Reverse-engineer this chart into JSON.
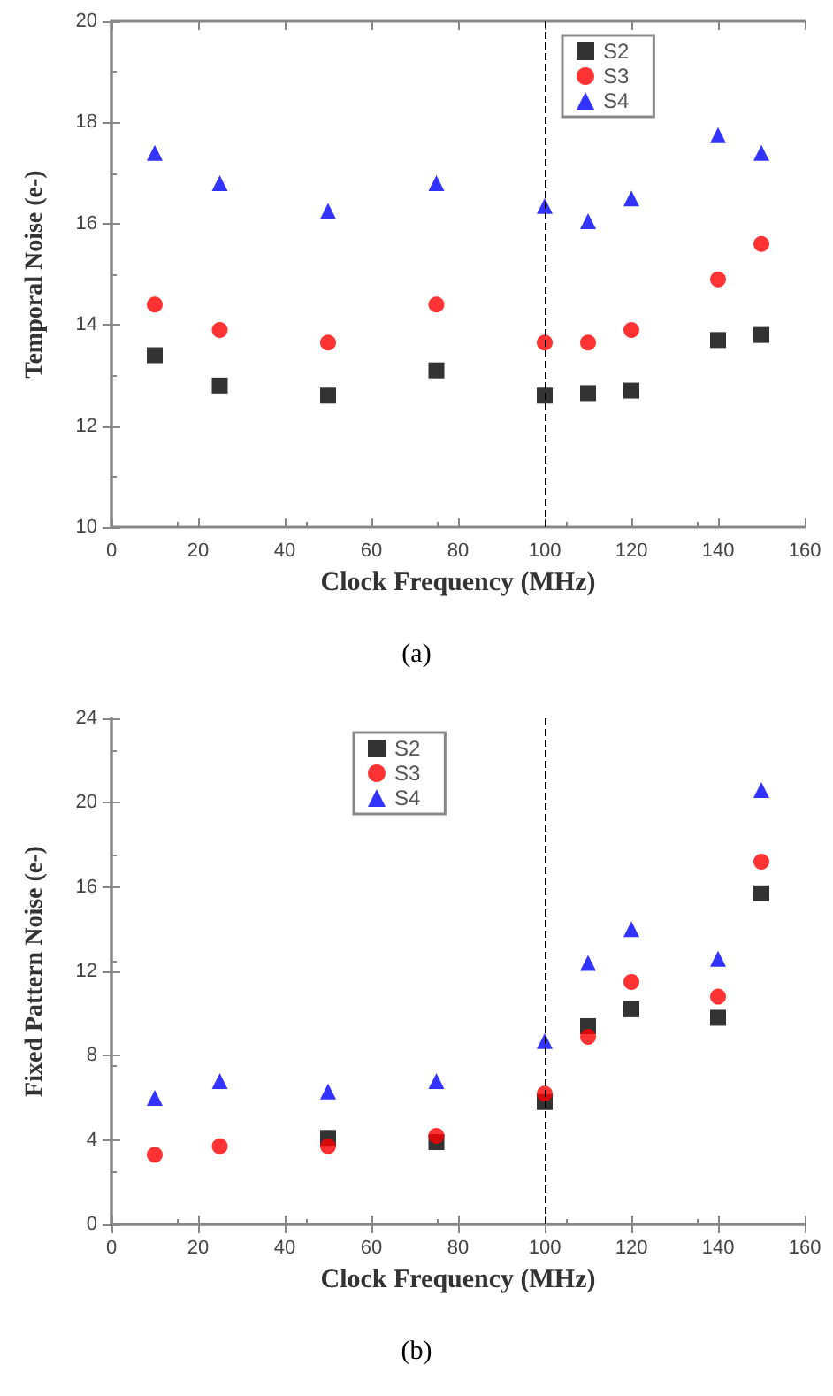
{
  "chart_data": [
    {
      "type": "scatter",
      "xlabel": "Clock Frequency (MHz)",
      "ylabel": "Temporal Noise (e-)",
      "annotations": [
        "(a)"
      ],
      "x": [
        10,
        25,
        50,
        75,
        100,
        110,
        120,
        140,
        150
      ],
      "xlim": [
        0,
        160
      ],
      "xticks": [
        0,
        20,
        40,
        60,
        80,
        100,
        120,
        140,
        160
      ],
      "ylim": [
        10,
        20
      ],
      "yticks": [
        10,
        12,
        14,
        16,
        18,
        20
      ],
      "legend": "top right",
      "grid": false,
      "series": [
        {
          "name": "S2",
          "color": "#000000",
          "marker": "square",
          "values": [
            13.4,
            12.8,
            12.6,
            13.1,
            12.6,
            12.65,
            12.7,
            13.7,
            13.8
          ]
        },
        {
          "name": "S3",
          "color": "#ff0000",
          "marker": "circle",
          "values": [
            14.4,
            13.9,
            13.65,
            14.4,
            13.65,
            13.65,
            13.9,
            14.9,
            15.6
          ]
        },
        {
          "name": "S4",
          "color": "#0000ff",
          "marker": "triangle",
          "values": [
            17.4,
            16.8,
            16.25,
            16.8,
            16.35,
            16.05,
            16.5,
            17.75,
            17.4
          ]
        }
      ],
      "ref_lines": [
        {
          "axis": "x",
          "value": 100,
          "color": "#000000",
          "line_style": "dashed"
        }
      ]
    },
    {
      "type": "scatter",
      "xlabel": "Clock Frequency (MHz)",
      "ylabel": "Fixed Pattern Noise (e-)",
      "annotations": [
        "(b)"
      ],
      "x": [
        10,
        25,
        50,
        75,
        100,
        110,
        120,
        140,
        150
      ],
      "xlim": [
        0,
        160
      ],
      "xticks": [
        0,
        20,
        40,
        60,
        80,
        100,
        120,
        140,
        160
      ],
      "ylim": [
        0,
        24
      ],
      "yticks": [
        0,
        4,
        8,
        12,
        16,
        20,
        24
      ],
      "legend": "top",
      "grid": false,
      "series": [
        {
          "name": "S2",
          "color": "#000000",
          "marker": "square",
          "values": [
            null,
            null,
            4.1,
            3.9,
            5.8,
            9.4,
            10.2,
            9.8,
            15.7
          ]
        },
        {
          "name": "S3",
          "color": "#ff0000",
          "marker": "circle",
          "values": [
            3.3,
            3.7,
            3.7,
            4.2,
            6.2,
            8.9,
            11.5,
            10.8,
            17.2
          ]
        },
        {
          "name": "S4",
          "color": "#0000ff",
          "marker": "triangle",
          "values": [
            6.0,
            6.8,
            6.3,
            6.8,
            8.7,
            12.4,
            14.0,
            12.6,
            20.6
          ]
        }
      ],
      "ref_lines": [
        {
          "axis": "x",
          "value": 100,
          "color": "#000000",
          "line_style": "dashed"
        }
      ]
    }
  ]
}
